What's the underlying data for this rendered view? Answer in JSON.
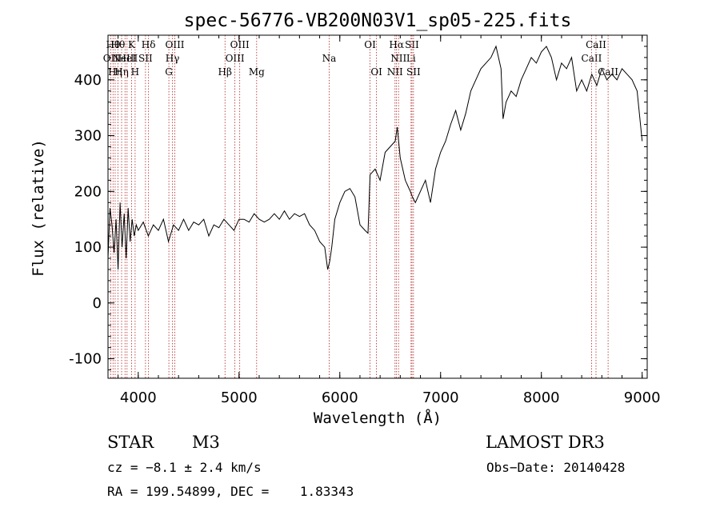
{
  "chart_data": {
    "type": "line",
    "title": "spec-56776-VB200N03V1_sp05-225.fits",
    "xlabel": "Wavelength (Å)",
    "ylabel": "Flux (relative)",
    "xlim": [
      3700,
      9050
    ],
    "ylim": [
      -135,
      480
    ],
    "x_ticks": [
      4000,
      5000,
      6000,
      7000,
      8000,
      9000
    ],
    "y_ticks": [
      -100,
      0,
      100,
      200,
      300,
      400
    ],
    "grid": false,
    "series": [
      {
        "x": [
          3700,
          3720,
          3740,
          3760,
          3780,
          3800,
          3820,
          3840,
          3860,
          3880,
          3900,
          3920,
          3940,
          3960,
          3980,
          4000,
          4050,
          4100,
          4150,
          4200,
          4250,
          4300,
          4350,
          4400,
          4450,
          4500,
          4550,
          4600,
          4650,
          4700,
          4750,
          4800,
          4850,
          4900,
          4950,
          5000,
          5050,
          5100,
          5150,
          5200,
          5250,
          5300,
          5350,
          5400,
          5450,
          5500,
          5550,
          5600,
          5650,
          5700,
          5750,
          5800,
          5850,
          5880,
          5900,
          5920,
          5950,
          6000,
          6050,
          6100,
          6150,
          6200,
          6250,
          6280,
          6300,
          6350,
          6400,
          6450,
          6500,
          6550,
          6570,
          6600,
          6650,
          6700,
          6720,
          6750,
          6800,
          6850,
          6900,
          6950,
          7000,
          7050,
          7100,
          7150,
          7200,
          7250,
          7300,
          7350,
          7400,
          7450,
          7500,
          7550,
          7600,
          7620,
          7650,
          7700,
          7750,
          7800,
          7850,
          7900,
          7950,
          8000,
          8050,
          8100,
          8150,
          8200,
          8250,
          8300,
          8350,
          8400,
          8450,
          8500,
          8550,
          8600,
          8650,
          8700,
          8750,
          8800,
          8850,
          8900,
          8950,
          9000
        ],
        "y": [
          80,
          170,
          140,
          90,
          150,
          60,
          180,
          100,
          160,
          80,
          170,
          110,
          150,
          120,
          140,
          130,
          145,
          120,
          140,
          130,
          150,
          110,
          140,
          130,
          150,
          130,
          145,
          140,
          150,
          120,
          140,
          135,
          150,
          140,
          130,
          150,
          150,
          145,
          160,
          150,
          145,
          150,
          160,
          150,
          165,
          150,
          160,
          155,
          160,
          140,
          130,
          110,
          100,
          60,
          75,
          100,
          150,
          180,
          200,
          205,
          190,
          140,
          130,
          125,
          230,
          240,
          220,
          270,
          280,
          290,
          315,
          260,
          220,
          200,
          190,
          180,
          200,
          220,
          180,
          240,
          270,
          290,
          320,
          345,
          310,
          340,
          380,
          400,
          420,
          430,
          440,
          460,
          420,
          330,
          360,
          380,
          370,
          400,
          420,
          440,
          430,
          450,
          460,
          440,
          400,
          430,
          420,
          440,
          380,
          400,
          380,
          410,
          390,
          420,
          400,
          410,
          400,
          420,
          410,
          400,
          380,
          290
        ]
      }
    ],
    "line_marks": [
      {
        "w": 3727,
        "label": "OII",
        "row": 1
      },
      {
        "w": 3750,
        "label": "Hθ",
        "row": 0
      },
      {
        "w": 3771,
        "label": "Hη",
        "row": 2
      },
      {
        "w": 3798,
        "label": "Hθ",
        "row": 0
      },
      {
        "w": 3835,
        "label": "Hη",
        "row": 2
      },
      {
        "w": 3869,
        "label": "NeIII",
        "row": 1
      },
      {
        "w": 3889,
        "label": "HeI",
        "row": 1
      },
      {
        "w": 3934,
        "label": "K",
        "row": 0
      },
      {
        "w": 3969,
        "label": "H",
        "row": 2
      },
      {
        "w": 4072,
        "label": "SII",
        "row": 1
      },
      {
        "w": 4102,
        "label": "Hδ",
        "row": 0
      },
      {
        "w": 4304,
        "label": "G",
        "row": 2
      },
      {
        "w": 4340,
        "label": "Hγ",
        "row": 1
      },
      {
        "w": 4363,
        "label": "OIII",
        "row": 0
      },
      {
        "w": 4861,
        "label": "Hβ",
        "row": 2
      },
      {
        "w": 4959,
        "label": "OIII",
        "row": 1
      },
      {
        "w": 5007,
        "label": "OIII",
        "row": 0
      },
      {
        "w": 5175,
        "label": "Mg",
        "row": 2
      },
      {
        "w": 5894,
        "label": "Na",
        "row": 1
      },
      {
        "w": 6300,
        "label": "OI",
        "row": 0
      },
      {
        "w": 6364,
        "label": "OI",
        "row": 2
      },
      {
        "w": 6548,
        "label": "NII",
        "row": 2
      },
      {
        "w": 6563,
        "label": "Hα",
        "row": 0
      },
      {
        "w": 6583,
        "label": "NII",
        "row": 1
      },
      {
        "w": 6707,
        "label": "Li",
        "row": 1
      },
      {
        "w": 6716,
        "label": "SII",
        "row": 0
      },
      {
        "w": 6731,
        "label": "SII",
        "row": 2
      },
      {
        "w": 8498,
        "label": "CaII",
        "row": 1
      },
      {
        "w": 8542,
        "label": "CaII",
        "row": 0
      },
      {
        "w": 8662,
        "label": "CaII",
        "row": 2
      }
    ]
  },
  "info": {
    "object_class": "STAR",
    "subclass": "M3",
    "survey": "LAMOST DR3",
    "cz": "cz = −8.1 ± 2.4 km/s",
    "obs_date": "Obs−Date: 20140428",
    "coords": "RA = 199.54899, DEC =    1.83343"
  }
}
